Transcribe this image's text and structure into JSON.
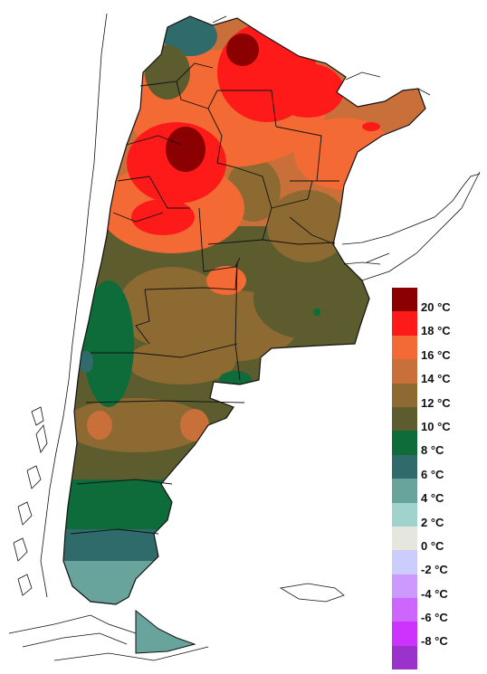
{
  "legend": {
    "bins": [
      {
        "label": "20 °C",
        "color": "#8b0000"
      },
      {
        "label": "18 °C",
        "color": "#ff1a1a"
      },
      {
        "label": "16 °C",
        "color": "#f36a35"
      },
      {
        "label": "14 °C",
        "color": "#c96f3a"
      },
      {
        "label": "12 °C",
        "color": "#8c6a32"
      },
      {
        "label": "10 °C",
        "color": "#5c5c2e"
      },
      {
        "label": "8 °C",
        "color": "#0e6b3a"
      },
      {
        "label": "6 °C",
        "color": "#2f6b6b"
      },
      {
        "label": "4 °C",
        "color": "#68a49c"
      },
      {
        "label": "2 °C",
        "color": "#9fd3cb"
      },
      {
        "label": "0 °C",
        "color": "#e6e6e0"
      },
      {
        "label": "-2 °C",
        "color": "#ccccff"
      },
      {
        "label": "-4 °C",
        "color": "#cc99ff"
      },
      {
        "label": "-6 °C",
        "color": "#cc66ff"
      },
      {
        "label": "-8 °C",
        "color": "#cc33ff"
      },
      {
        "label": "",
        "color": "#9933cc"
      }
    ]
  }
}
